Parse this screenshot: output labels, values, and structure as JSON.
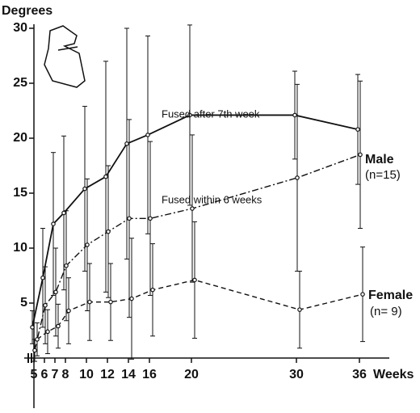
{
  "chart_data": {
    "type": "line",
    "y_label": "Degrees",
    "x_label": "Weeks",
    "x": [
      5,
      6,
      7,
      8,
      10,
      12,
      14,
      16,
      20,
      30,
      36
    ],
    "xlim": [
      4.5,
      38.5
    ],
    "xticks": [
      5,
      6,
      7,
      8,
      10,
      12,
      14,
      16,
      20,
      30,
      36
    ],
    "ylim": [
      0,
      30
    ],
    "yticks": [
      5,
      10,
      15,
      20,
      25,
      30
    ],
    "grid": false,
    "series": [
      {
        "name": "Fused after 7th week",
        "color": "#111111",
        "line_style": "solid",
        "values": [
          2.8,
          7.3,
          12.2,
          13.2,
          15.4,
          16.5,
          19.5,
          20.3,
          22.1,
          22.1,
          20.8
        ],
        "errors": [
          1.5,
          4.5,
          6.5,
          7,
          7.5,
          10.5,
          10.5,
          9,
          8.2,
          4,
          5
        ]
      },
      {
        "name": "Fused within 6 weeks",
        "color": "#111111",
        "line_style": "dashdot",
        "values": [
          0.7,
          4.8,
          6.0,
          8.4,
          10.3,
          11.5,
          12.7,
          12.7,
          13.6,
          16.4,
          18.5
        ],
        "errors": [
          1,
          3.5,
          4,
          5,
          6,
          6,
          9,
          7,
          6.7,
          8.5,
          6.7
        ]
      },
      {
        "name": "Female",
        "color": "#111111",
        "line_style": "dashed",
        "values": [
          1.7,
          2.4,
          2.9,
          4.3,
          5.1,
          5.1,
          5.4,
          6.2,
          7.1,
          4.4,
          5.8
        ],
        "errors": [
          1.5,
          2,
          2,
          3,
          3.5,
          3.5,
          5.5,
          4.2,
          5.3,
          3.5,
          4.3
        ]
      }
    ],
    "annotations": [
      "Male",
      "(n=15)",
      "(n= 9)"
    ]
  }
}
